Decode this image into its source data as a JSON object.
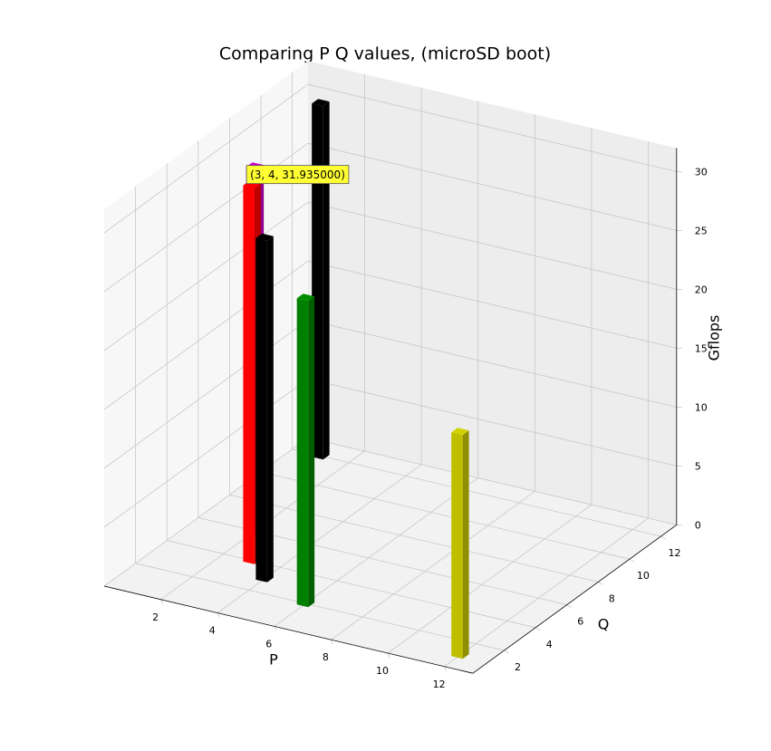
{
  "chart_data": {
    "type": "bar3d",
    "title": "Comparing P Q values, (microSD boot)",
    "xlabel": "P",
    "ylabel": "Q",
    "zlabel": "Gflops",
    "x": [
      1,
      2,
      3,
      4,
      6,
      12
    ],
    "y": [
      12,
      6,
      4,
      3,
      2,
      1
    ],
    "values": [
      30,
      31,
      31.935,
      29,
      26,
      19
    ],
    "colors": [
      "#000000",
      "#bf00bf",
      "#ff0000",
      "#000000",
      "#008000",
      "#bfbf00"
    ],
    "xlim": [
      0,
      13
    ],
    "ylim": [
      0,
      13
    ],
    "zlim": [
      0,
      32
    ],
    "xticks": [
      2,
      4,
      6,
      8,
      10,
      12
    ],
    "yticks": [
      2,
      4,
      6,
      8,
      10,
      12
    ],
    "zticks": [
      0,
      5,
      10,
      15,
      20,
      25,
      30
    ],
    "annotation": "(3, 4, 31.935000)",
    "grid": true
  }
}
